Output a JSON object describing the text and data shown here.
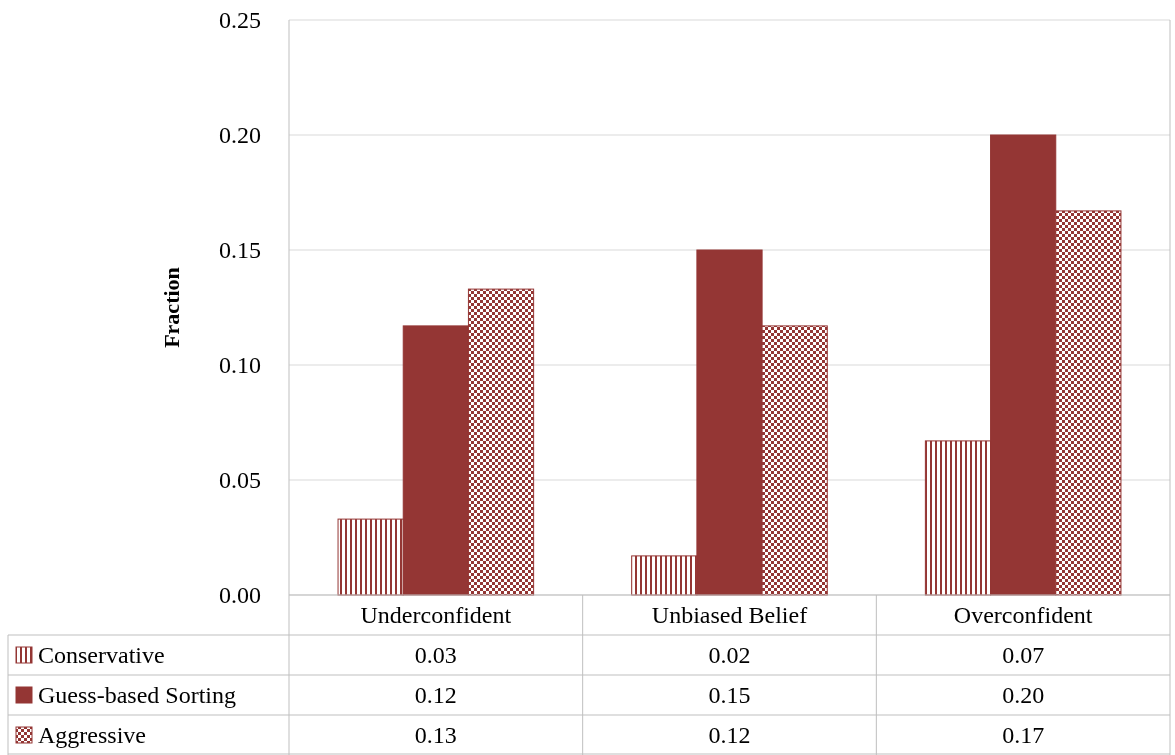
{
  "chart_data": {
    "type": "bar",
    "ylabel": "Fraction",
    "categories": [
      "Underconfident",
      "Unbiased Belief",
      "Overconfident"
    ],
    "series": [
      {
        "name": "Conservative",
        "color": "#943634",
        "values": [
          0.033,
          0.017,
          0.067
        ],
        "value_labels": [
          "0.03",
          "0.02",
          "0.07"
        ]
      },
      {
        "name": "Guess-based Sorting",
        "color": "#943634",
        "values": [
          0.117,
          0.15,
          0.2
        ],
        "value_labels": [
          "0.12",
          "0.15",
          "0.20"
        ]
      },
      {
        "name": "Aggressive",
        "color": "#943634",
        "values": [
          0.133,
          0.117,
          0.167
        ],
        "value_labels": [
          "0.13",
          "0.12",
          "0.17"
        ]
      }
    ],
    "ylim": [
      0,
      0.25
    ],
    "yticks": [
      "0.00",
      "0.05",
      "0.10",
      "0.15",
      "0.20",
      "0.25"
    ],
    "grid": "y",
    "legend": "bottom"
  }
}
